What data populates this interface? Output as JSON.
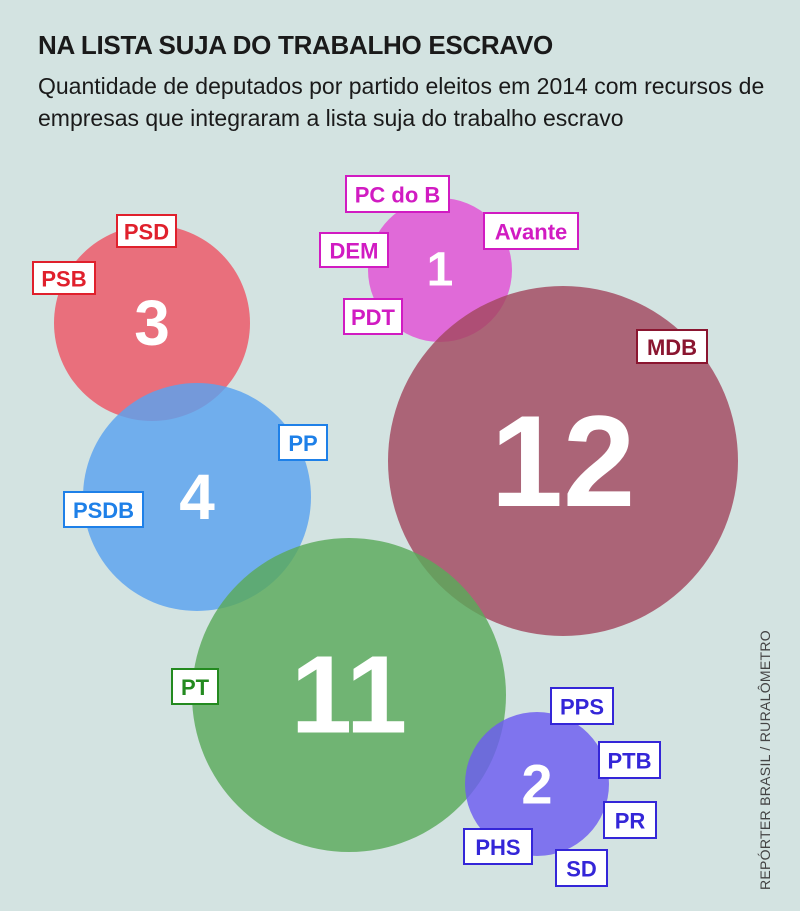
{
  "title": "NA LISTA SUJA DO TRABALHO ESCRAVO",
  "subtitle": "Quantidade de deputados por partido eleitos em 2014 com recursos de empresas que integraram a lista suja do trabalho escravo",
  "credit": "REPÓRTER BRASIL / RURALÔMETRO",
  "chart_data": {
    "type": "bubble",
    "bubbles": [
      {
        "value": 3,
        "color": "#ee5565",
        "parties": [
          "PSD",
          "PSB"
        ]
      },
      {
        "value": 1,
        "color": "#e34fd6",
        "parties": [
          "PC do B",
          "Avante",
          "DEM",
          "PDT"
        ]
      },
      {
        "value": 12,
        "color": "#a2485f",
        "parties": [
          "MDB"
        ]
      },
      {
        "value": 4,
        "color": "#5aa2ef",
        "parties": [
          "PP",
          "PSDB"
        ]
      },
      {
        "value": 11,
        "color": "#5aaa5a",
        "parties": [
          "PT"
        ]
      },
      {
        "value": 2,
        "color": "#6c5cf0",
        "parties": [
          "PPS",
          "PTB",
          "PR",
          "PHS",
          "SD"
        ]
      }
    ],
    "label_colors": {
      "PSD": "#e0202c",
      "PSB": "#e0202c",
      "PC do B": "#d11bc2",
      "Avante": "#d11bc2",
      "DEM": "#d11bc2",
      "PDT": "#d11bc2",
      "MDB": "#8a1530",
      "PP": "#1e80e8",
      "PSDB": "#1e80e8",
      "PT": "#238a1f",
      "PPS": "#3426d8",
      "PTB": "#3426d8",
      "PR": "#3426d8",
      "PHS": "#3426d8",
      "SD": "#3426d8"
    }
  }
}
